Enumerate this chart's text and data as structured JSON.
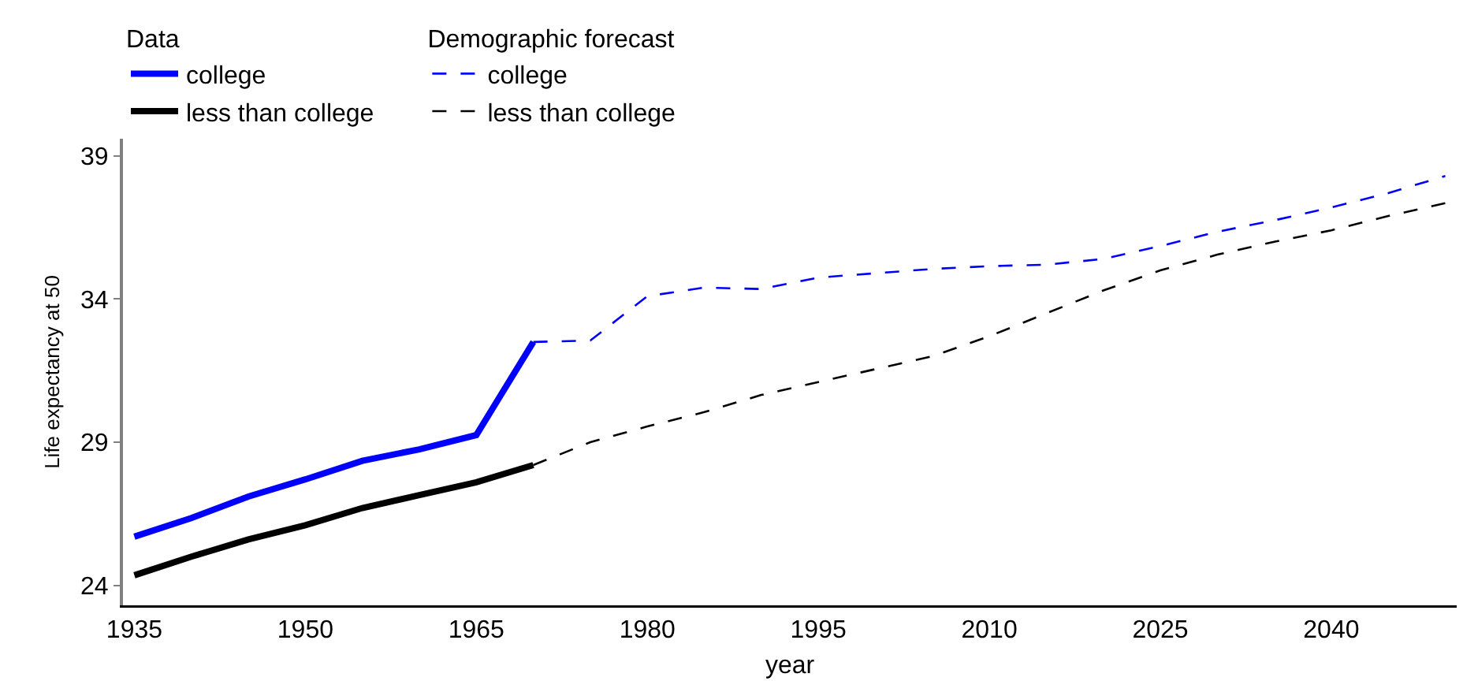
{
  "chart_data": {
    "type": "line",
    "xlabel": "year",
    "ylabel": "Life expectancy at 50",
    "legend_title": "Data",
    "annotations": [
      "Demographic forecast"
    ],
    "xlim": [
      1934,
      2051
    ],
    "xticks": [
      1935,
      1950,
      1965,
      1980,
      1995,
      2010,
      2025,
      2040
    ],
    "ylim": [
      23.3,
      39.6
    ],
    "yticks": [
      24,
      29,
      34,
      39
    ],
    "grid": false,
    "legend": "top left",
    "marker": "none",
    "series": [
      {
        "name": "college",
        "color": "#0000ff",
        "line_style": "solid",
        "x": [
          1935,
          1940,
          1945,
          1950,
          1955,
          1960,
          1965,
          1970
        ],
        "values": [
          25.7,
          26.35,
          27.1,
          27.7,
          28.35,
          28.75,
          29.25,
          32.5
        ]
      },
      {
        "name": "less than college",
        "color": "#000000",
        "line_style": "solid",
        "x": [
          1935,
          1940,
          1945,
          1950,
          1955,
          1960,
          1965,
          1970
        ],
        "values": [
          24.35,
          25.0,
          25.6,
          26.1,
          26.7,
          27.15,
          27.6,
          28.2
        ]
      },
      {
        "name": "college",
        "color": "#0000ff",
        "line_style": "dashed",
        "x": [
          1970,
          1975,
          1980,
          1985,
          1990,
          1995,
          2000,
          2005,
          2010,
          2015,
          2020,
          2025,
          2030,
          2035,
          2040,
          2045,
          2050
        ],
        "values": [
          32.5,
          32.55,
          34.1,
          34.4,
          34.35,
          34.75,
          34.9,
          35.05,
          35.15,
          35.2,
          35.4,
          35.85,
          36.35,
          36.75,
          37.2,
          37.7,
          38.3
        ]
      },
      {
        "name": "less than college",
        "color": "#000000",
        "line_style": "dashed",
        "x": [
          1970,
          1975,
          1980,
          1985,
          1990,
          1995,
          2000,
          2005,
          2010,
          2015,
          2020,
          2025,
          2030,
          2035,
          2040,
          2045,
          2050
        ],
        "values": [
          28.2,
          29.0,
          29.55,
          30.05,
          30.65,
          31.1,
          31.55,
          32.0,
          32.7,
          33.5,
          34.3,
          35.0,
          35.55,
          36.0,
          36.4,
          36.9,
          37.35
        ]
      }
    ]
  }
}
